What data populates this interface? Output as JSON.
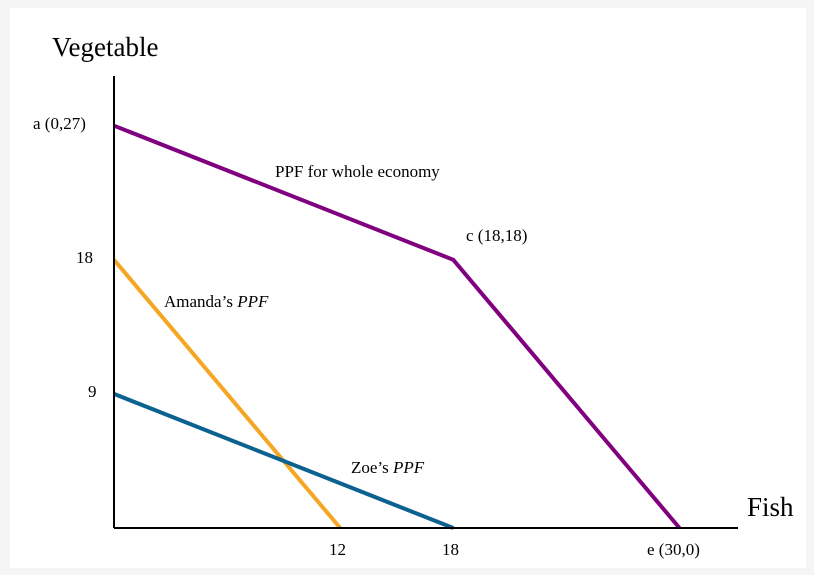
{
  "chart_data": {
    "type": "line",
    "xlabel": "Fish",
    "ylabel": "Vegetable",
    "xlim": [
      0,
      36
    ],
    "ylim": [
      0,
      27
    ],
    "x_ticks": [
      {
        "value": 12,
        "label": "12"
      },
      {
        "value": 18,
        "label": "18"
      },
      {
        "value": 30,
        "label": "e (30,0)"
      }
    ],
    "y_ticks": [
      {
        "value": 27,
        "label": "a (0,27)"
      },
      {
        "value": 18,
        "label": "18"
      },
      {
        "value": 9,
        "label": "9"
      }
    ],
    "series": [
      {
        "key": "economy",
        "name": "PPF for whole economy",
        "color": "#800080",
        "points": [
          [
            0,
            27
          ],
          [
            18,
            18
          ],
          [
            30,
            0
          ]
        ]
      },
      {
        "key": "amanda",
        "name": "Amanda’s PPF",
        "color": "#f5a623",
        "points": [
          [
            0,
            18
          ],
          [
            12,
            0
          ]
        ]
      },
      {
        "key": "zoe",
        "name": "Zoe’s PPF",
        "color": "#0b6190",
        "points": [
          [
            0,
            9
          ],
          [
            18,
            0
          ]
        ]
      }
    ],
    "annotations": [
      {
        "key": "c",
        "text": "c (18,18)",
        "x": 18,
        "y": 18
      }
    ],
    "grid": false,
    "legend": "none"
  }
}
